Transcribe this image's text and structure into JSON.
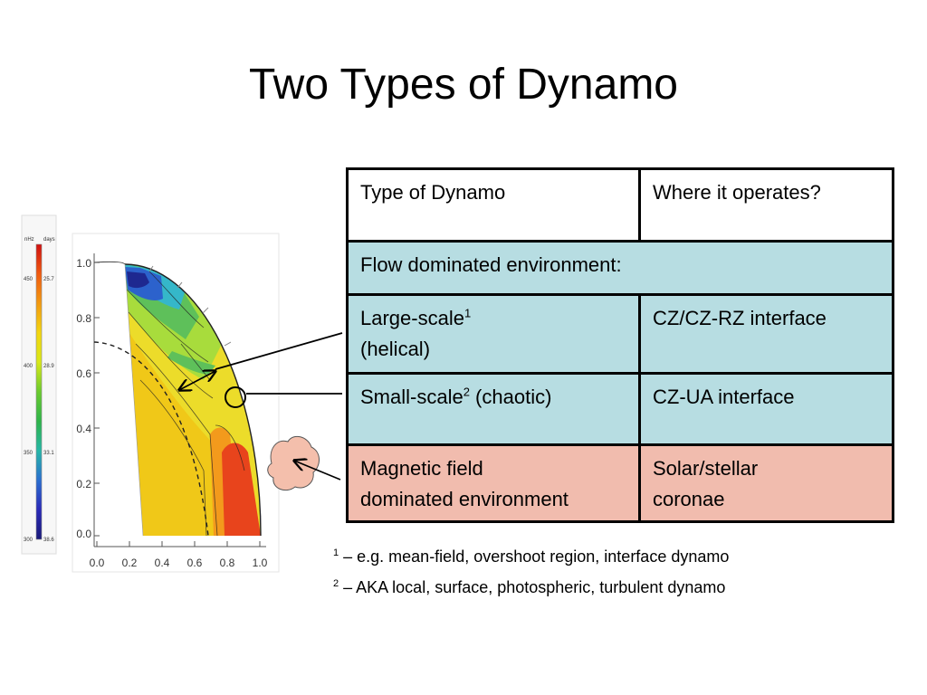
{
  "slide": {
    "title": "Two Types of Dynamo"
  },
  "table": {
    "header": {
      "type": "Type of Dynamo",
      "where": "Where it operates?"
    },
    "flow_row": {
      "label": "Flow dominated environment:"
    },
    "large_row": {
      "type_line1": "Large-scale",
      "sup": "1",
      "type_line2": "(helical)",
      "where": "CZ/CZ-RZ interface"
    },
    "small_row": {
      "type_pre": "Small-scale",
      "sup": "2",
      "type_post": " (chaotic)",
      "where": "CZ-UA interface"
    },
    "mag_row": {
      "type_line1": "Magnetic field",
      "type_line2": "dominated environment",
      "where_line1": "Solar/stellar",
      "where_line2": "coronae"
    }
  },
  "notes": [
    {
      "marker": "1",
      "text": " – e.g. mean-field, overshoot region, interface dynamo"
    },
    {
      "marker": "2",
      "text": " – AKA local, surface, photospheric, turbulent dynamo"
    }
  ],
  "figure": {
    "x_ticks": [
      "0.0",
      "0.2",
      "0.4",
      "0.6",
      "0.8",
      "1.0"
    ],
    "y_ticks": [
      "0.0",
      "0.2",
      "0.4",
      "0.6",
      "0.8",
      "1.0"
    ],
    "colorbar": {
      "header_left": "nHz",
      "header_right": "days",
      "left_ticks": [
        "450",
        "400",
        "350",
        "300"
      ],
      "right_ticks": [
        "25.7",
        "28.9",
        "33.1",
        "38.6"
      ],
      "colors": [
        "#d01010",
        "#f05a10",
        "#f39a10",
        "#f3d610",
        "#d8e818",
        "#6acb2e",
        "#2eb44a",
        "#26b6a8",
        "#2a6ed0",
        "#2a2ab8",
        "#1a1a78"
      ]
    },
    "rotation_colors": {
      "inner": "#f0c818",
      "mid": "#ecdc2a",
      "upper": "#a8dc3c",
      "green": "#5ec05a",
      "cyan": "#35b7c9",
      "blue": "#2c62cc",
      "navy": "#1e2890",
      "orange": "#f39a1c",
      "red": "#e8441c"
    }
  }
}
